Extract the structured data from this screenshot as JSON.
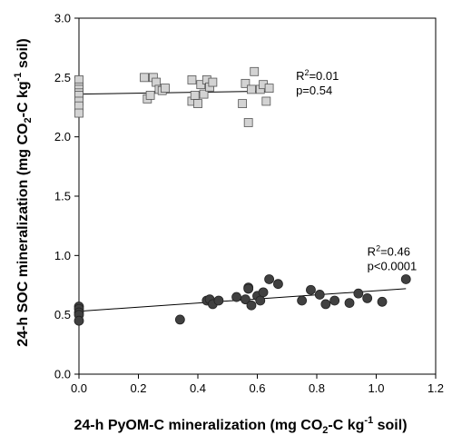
{
  "chart_data": {
    "type": "scatter",
    "xlabel": {
      "pre": "24-h PyOM-C mineralization (mg CO",
      "sub": "2",
      "mid": "-C kg",
      "sup": "-1",
      "post": " soil)"
    },
    "ylabel": {
      "pre": "24-h SOC mineralization (mg CO",
      "sub": "2",
      "mid": "-C kg",
      "sup": "-1",
      "post": " soil)"
    },
    "xlim": [
      0.0,
      1.2
    ],
    "ylim": [
      0.0,
      3.0
    ],
    "xticks": [
      "0.0",
      "0.2",
      "0.4",
      "0.6",
      "0.8",
      "1.0",
      "1.2"
    ],
    "yticks": [
      "0.0",
      "0.5",
      "1.0",
      "1.5",
      "2.0",
      "2.5",
      "3.0"
    ],
    "grid": false,
    "series": [
      {
        "marker": "square",
        "color": "#d3d3d3",
        "points": [
          [
            0.0,
            2.48
          ],
          [
            0.0,
            2.42
          ],
          [
            0.0,
            2.4
          ],
          [
            0.0,
            2.37
          ],
          [
            0.0,
            2.35
          ],
          [
            0.0,
            2.3
          ],
          [
            0.0,
            2.26
          ],
          [
            0.0,
            2.2
          ],
          [
            0.22,
            2.5
          ],
          [
            0.23,
            2.32
          ],
          [
            0.24,
            2.35
          ],
          [
            0.25,
            2.5
          ],
          [
            0.26,
            2.46
          ],
          [
            0.27,
            2.4
          ],
          [
            0.28,
            2.39
          ],
          [
            0.29,
            2.41
          ],
          [
            0.38,
            2.48
          ],
          [
            0.38,
            2.3
          ],
          [
            0.39,
            2.35
          ],
          [
            0.4,
            2.28
          ],
          [
            0.41,
            2.44
          ],
          [
            0.42,
            2.36
          ],
          [
            0.43,
            2.48
          ],
          [
            0.44,
            2.42
          ],
          [
            0.45,
            2.46
          ],
          [
            0.55,
            2.28
          ],
          [
            0.56,
            2.45
          ],
          [
            0.57,
            2.12
          ],
          [
            0.58,
            2.4
          ],
          [
            0.59,
            2.55
          ],
          [
            0.61,
            2.4
          ],
          [
            0.62,
            2.44
          ],
          [
            0.63,
            2.3
          ],
          [
            0.64,
            2.41
          ]
        ],
        "trend": {
          "x": [
            0.0,
            0.64
          ],
          "y": [
            2.36,
            2.385
          ]
        },
        "annotation": {
          "r2": "=0.01",
          "p": "p=0.54",
          "x": 0.73,
          "y": 2.48
        }
      },
      {
        "marker": "circle",
        "color": "#404040",
        "points": [
          [
            0.0,
            0.57
          ],
          [
            0.0,
            0.55
          ],
          [
            0.0,
            0.52
          ],
          [
            0.0,
            0.5
          ],
          [
            0.0,
            0.45
          ],
          [
            0.34,
            0.46
          ],
          [
            0.43,
            0.62
          ],
          [
            0.44,
            0.63
          ],
          [
            0.45,
            0.59
          ],
          [
            0.47,
            0.62
          ],
          [
            0.53,
            0.65
          ],
          [
            0.56,
            0.63
          ],
          [
            0.57,
            0.73
          ],
          [
            0.57,
            0.72
          ],
          [
            0.58,
            0.58
          ],
          [
            0.6,
            0.66
          ],
          [
            0.61,
            0.62
          ],
          [
            0.62,
            0.69
          ],
          [
            0.64,
            0.8
          ],
          [
            0.67,
            0.76
          ],
          [
            0.75,
            0.62
          ],
          [
            0.78,
            0.71
          ],
          [
            0.81,
            0.67
          ],
          [
            0.83,
            0.59
          ],
          [
            0.86,
            0.62
          ],
          [
            0.91,
            0.6
          ],
          [
            0.94,
            0.68
          ],
          [
            0.97,
            0.64
          ],
          [
            1.02,
            0.61
          ],
          [
            1.1,
            0.8
          ]
        ],
        "trend": {
          "x": [
            0.0,
            1.1
          ],
          "y": [
            0.53,
            0.72
          ]
        },
        "annotation": {
          "r2": "=0.46",
          "p": "p<0.0001",
          "x": 0.97,
          "y": 1.0
        }
      }
    ]
  }
}
